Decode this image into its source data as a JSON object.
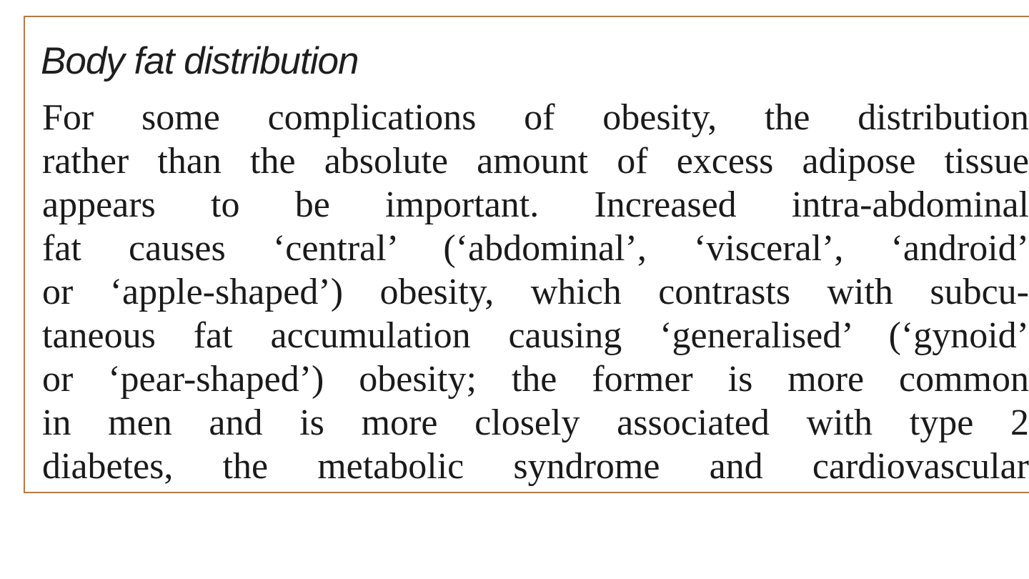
{
  "heading": "Body fat distribution",
  "body_lines": [
    "For some complications of obesity, the distribution",
    "rather than the absolute amount of excess adipose tissue",
    "appears to be important. Increased intra-abdominal",
    "fat causes ‘central’ (‘abdominal’, ‘visceral’, ‘android’",
    "or ‘apple-shaped’) obesity, which contrasts with subcu-",
    "taneous fat accumulation causing ‘generalised’ (‘gynoid’",
    "or ‘pear-shaped’) obesity; the former is more common",
    "in men and is more closely associated with type 2",
    "diabetes, the metabolic syndrome and cardiovascular"
  ],
  "colors": {
    "border": "#b47a46",
    "text": "#1a1a1a",
    "background": "#ffffff"
  }
}
